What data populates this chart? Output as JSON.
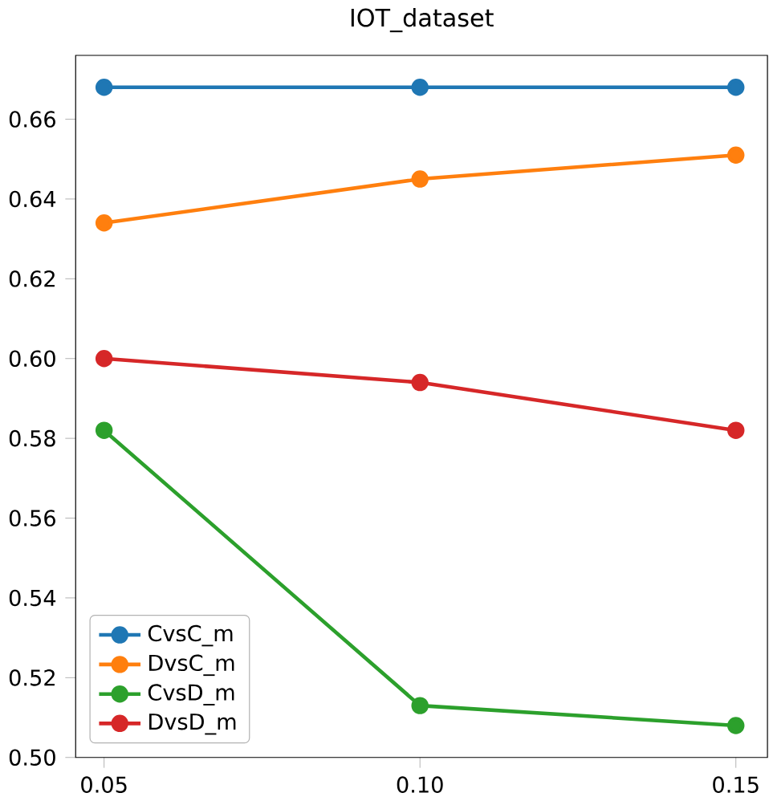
{
  "chart_data": {
    "type": "line",
    "title": "IOT_dataset",
    "x": [
      0.05,
      0.1,
      0.15
    ],
    "series": [
      {
        "name": "CvsC_m",
        "color": "#1f77b4",
        "values": [
          0.668,
          0.668,
          0.668
        ]
      },
      {
        "name": "DvsC_m",
        "color": "#ff7f0e",
        "values": [
          0.634,
          0.645,
          0.651
        ]
      },
      {
        "name": "CvsD_m",
        "color": "#2ca02c",
        "values": [
          0.582,
          0.513,
          0.508
        ]
      },
      {
        "name": "DvsD_m",
        "color": "#d62728",
        "values": [
          0.6,
          0.594,
          0.582
        ]
      }
    ],
    "xlim": [
      0.0455,
      0.155
    ],
    "ylim": [
      0.5,
      0.676
    ],
    "xticks": [
      {
        "value": 0.05,
        "label": "0.05"
      },
      {
        "value": 0.1,
        "label": "0.10"
      },
      {
        "value": 0.15,
        "label": "0.15"
      }
    ],
    "yticks": [
      {
        "value": 0.5,
        "label": "0.50"
      },
      {
        "value": 0.52,
        "label": "0.52"
      },
      {
        "value": 0.54,
        "label": "0.54"
      },
      {
        "value": 0.56,
        "label": "0.56"
      },
      {
        "value": 0.58,
        "label": "0.58"
      },
      {
        "value": 0.6,
        "label": "0.60"
      },
      {
        "value": 0.62,
        "label": "0.62"
      },
      {
        "value": 0.64,
        "label": "0.64"
      },
      {
        "value": 0.66,
        "label": "0.66"
      }
    ],
    "legend": "bottom left",
    "marker": "circle",
    "line_style": "solid",
    "grid": false
  }
}
